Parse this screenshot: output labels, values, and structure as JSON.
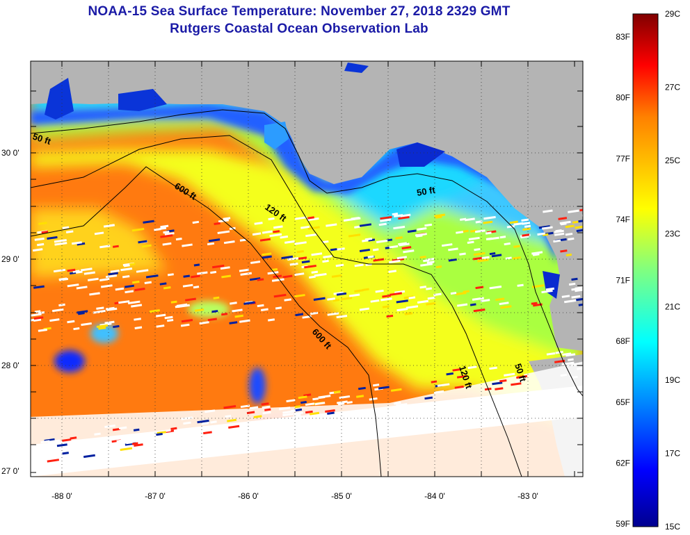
{
  "header": {
    "title": "NOAA-15 Sea Surface Temperature:  November 27, 2018 2329 GMT",
    "subtitle": "Rutgers Coastal Ocean Observation Lab"
  },
  "map": {
    "lon_range": [
      -88.35,
      -82.45
    ],
    "lat_range": [
      26.95,
      30.85
    ],
    "lon_ticks": [
      "-88 0'",
      "-87 0'",
      "-86 0'",
      "-85 0'",
      "-84 0'",
      "-83 0'"
    ],
    "lat_ticks": [
      "27 0'",
      "28 0'",
      "29 0'",
      "30 0'"
    ],
    "contours": [
      {
        "label": "50 ft"
      },
      {
        "label": "120 ft"
      },
      {
        "label": "600 ft"
      },
      {
        "label": "600 ft"
      },
      {
        "label": "50 ft"
      },
      {
        "label": "120 ft"
      },
      {
        "label": "50 ft"
      }
    ],
    "colors": {
      "land": "#b4b4b4",
      "cloud": "#ffffff"
    }
  },
  "colorbar": {
    "fahrenheit_labels": [
      "83F",
      "80F",
      "77F",
      "74F",
      "71F",
      "68F",
      "65F",
      "62F",
      "59F"
    ],
    "celsius_labels": [
      "29C",
      "27C",
      "25C",
      "23C",
      "21C",
      "19C",
      "17C",
      "15C"
    ],
    "range_c": [
      15,
      29
    ],
    "colormap": [
      "#00008f",
      "#0000ff",
      "#0080ff",
      "#00ffff",
      "#80ff80",
      "#ffff00",
      "#ff8000",
      "#ff0000",
      "#800000"
    ]
  }
}
